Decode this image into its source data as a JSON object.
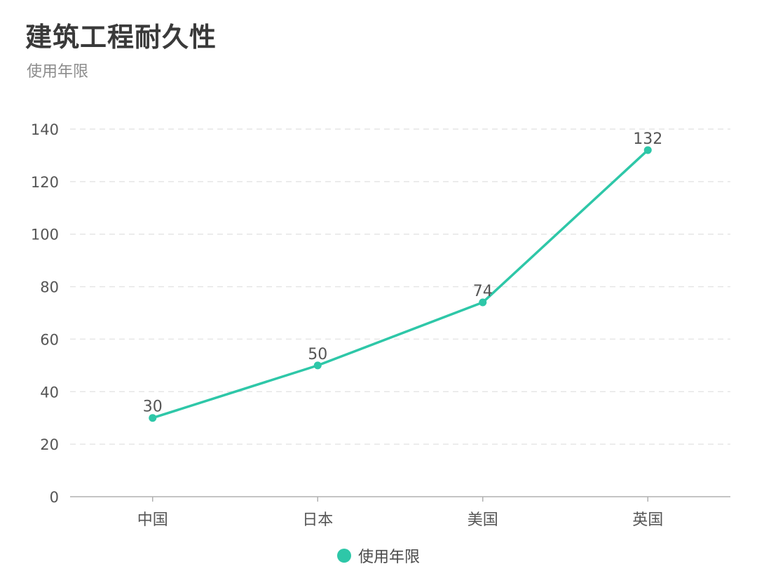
{
  "chart_data": {
    "type": "line",
    "title": "建筑工程耐久性",
    "subtitle": "使用年限",
    "categories": [
      "中国",
      "日本",
      "美国",
      "英国"
    ],
    "series": [
      {
        "name": "使用年限",
        "values": [
          30,
          50,
          74,
          132
        ],
        "color": "#2ec7a8"
      }
    ],
    "ylim": [
      0,
      140
    ],
    "yticks": [
      0,
      20,
      40,
      60,
      80,
      100,
      120,
      140
    ],
    "grid": "horizontal dashed",
    "data_labels": true,
    "legend_position": "bottom-center"
  },
  "colors": {
    "line": "#2ec7a8",
    "grid": "#e6e6e6",
    "axis": "#b0b0b0",
    "tick_text": "#555555",
    "label_text": "#555555"
  }
}
